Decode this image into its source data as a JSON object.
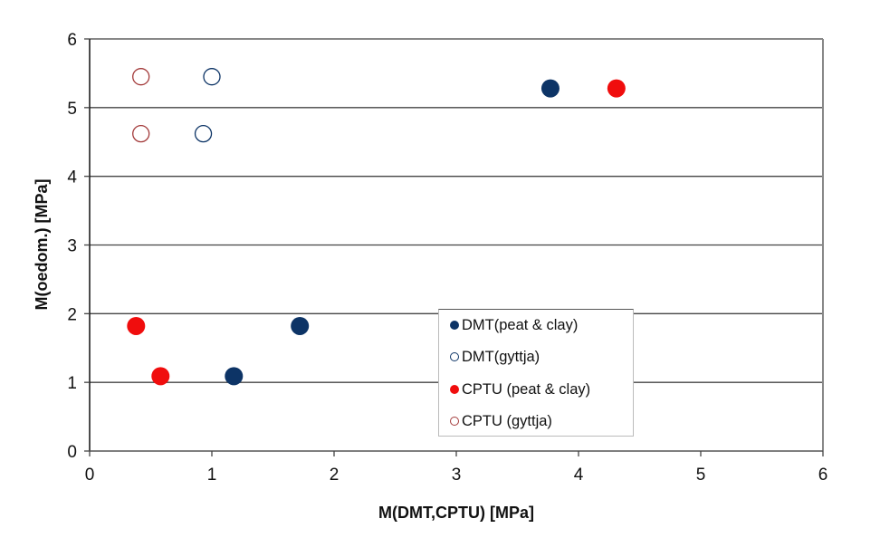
{
  "chart_data": {
    "type": "scatter",
    "title": "",
    "xlabel": "M(DMT,CPTU) [MPa]",
    "ylabel": "M(oedom.) [MPa]",
    "xlim": [
      0,
      6
    ],
    "ylim": [
      0,
      6
    ],
    "xticks": [
      0,
      1,
      2,
      3,
      4,
      5,
      6
    ],
    "yticks": [
      0,
      1,
      2,
      3,
      4,
      5,
      6
    ],
    "grid": "horizontal major gridlines",
    "legend_position": "inside lower-right-center",
    "series": [
      {
        "name": "DMT(peat & clay)",
        "marker": "filled-circle",
        "color": "#0d3466",
        "points": [
          [
            1.18,
            1.09
          ],
          [
            1.72,
            1.82
          ],
          [
            3.77,
            5.28
          ]
        ]
      },
      {
        "name": "DMT(gyttja)",
        "marker": "open-circle",
        "color": "#0d3466",
        "points": [
          [
            1.0,
            5.45
          ],
          [
            0.93,
            4.62
          ]
        ]
      },
      {
        "name": "CPTU (peat & clay)",
        "marker": "filled-circle",
        "color": "#f00d0d",
        "points": [
          [
            0.38,
            1.82
          ],
          [
            0.58,
            1.09
          ],
          [
            4.31,
            5.28
          ]
        ]
      },
      {
        "name": "CPTU (gyttja)",
        "marker": "open-circle",
        "color": "#a33a3a",
        "points": [
          [
            0.42,
            5.45
          ],
          [
            0.42,
            4.62
          ]
        ]
      }
    ]
  },
  "legend": {
    "items": [
      {
        "label": "DMT(peat & clay)"
      },
      {
        "label": "DMT(gyttja)"
      },
      {
        "label": "CPTU (peat & clay)"
      },
      {
        "label": "CPTU (gyttja)"
      }
    ]
  },
  "axes": {
    "x_title": "M(DMT,CPTU) [MPa]",
    "y_title": "M(oedom.) [MPa]",
    "x_ticks": [
      "0",
      "1",
      "2",
      "3",
      "4",
      "5",
      "6"
    ],
    "y_ticks": [
      "0",
      "1",
      "2",
      "3",
      "4",
      "5",
      "6"
    ]
  }
}
